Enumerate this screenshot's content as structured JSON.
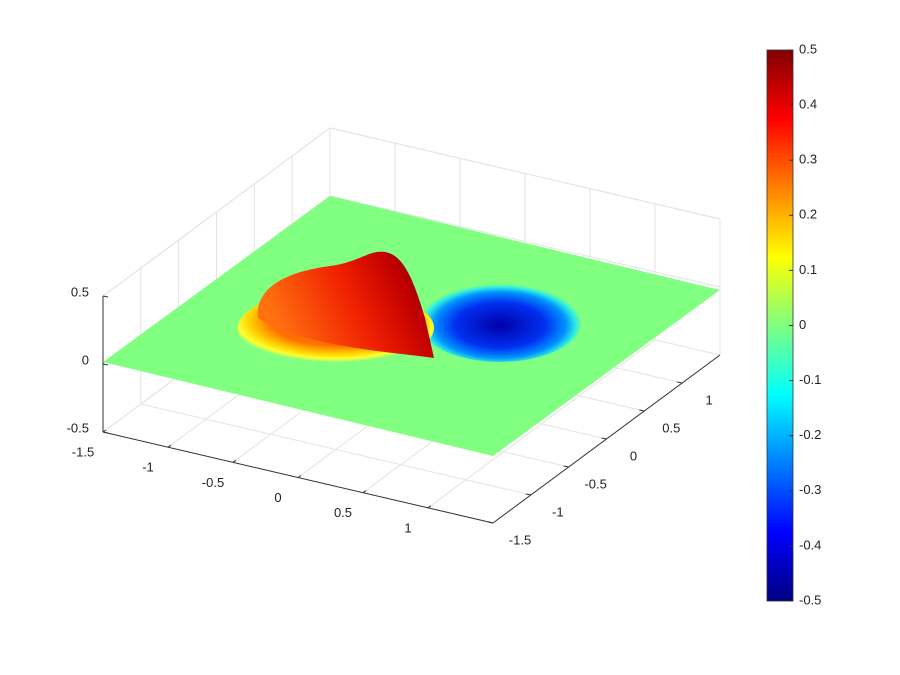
{
  "chart_data": {
    "type": "surface",
    "colormap": "jet",
    "xlim": [
      -1.5,
      1.5
    ],
    "xticks": [
      -1.5,
      -1,
      -0.5,
      0,
      0.5,
      1
    ],
    "ylim": [
      -1.5,
      1.5
    ],
    "yticks": [
      -1.5,
      -1,
      -0.5,
      0,
      0.5,
      1
    ],
    "zlim": [
      -0.5,
      0.5
    ],
    "zticks": [
      -0.5,
      0,
      0.5
    ],
    "clim": [
      -0.5,
      0.5
    ],
    "cticks": [
      -0.5,
      -0.4,
      -0.3,
      -0.2,
      -0.1,
      0,
      0.1,
      0.2,
      0.3,
      0.4,
      0.5
    ],
    "grid": true,
    "colorbar": true
  }
}
